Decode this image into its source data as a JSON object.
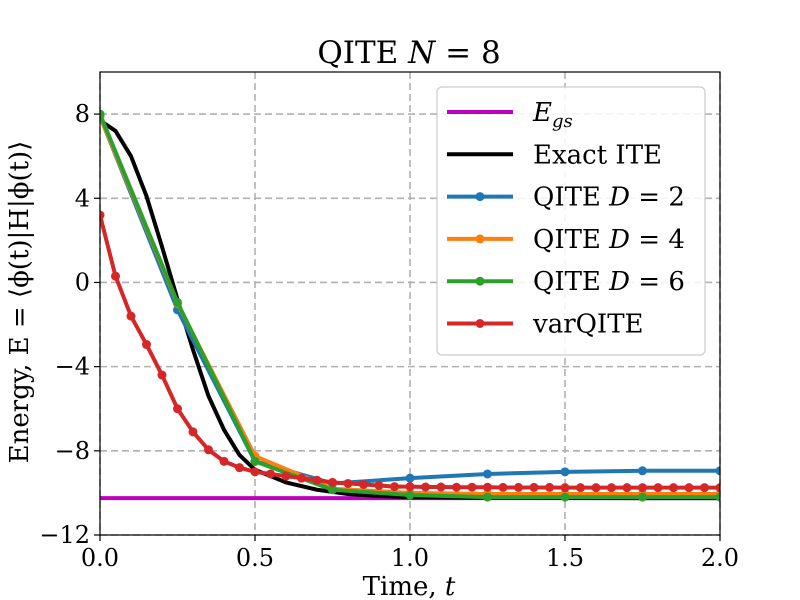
{
  "chart_data": {
    "type": "line",
    "title": "QITE N = 8",
    "xlabel": "Time, t",
    "ylabel": "Energy, E = ⟨ϕ(t)|H|ϕ(t)⟩",
    "xlim": [
      0,
      2
    ],
    "ylim": [
      -12,
      10
    ],
    "xticks": [
      0,
      0.5,
      1,
      1.5,
      2
    ],
    "xtick_labels": [
      "0.0",
      "0.5",
      "1.0",
      "1.5",
      "2.0"
    ],
    "yticks": [
      -12,
      -8,
      -4,
      0,
      4,
      8
    ],
    "ytick_labels": [
      "−12",
      "−8",
      "−4",
      "0",
      "4",
      "8"
    ],
    "grid": true,
    "legend_position": "top-right",
    "series": [
      {
        "name": "E_gs",
        "label_main": "E",
        "label_sub": "gs",
        "color": "#bf00bf",
        "markers": false,
        "x": [
          0,
          2
        ],
        "y": [
          -10.25,
          -10.25
        ]
      },
      {
        "name": "Exact ITE",
        "color": "#000000",
        "markers": false,
        "x": [
          0,
          0.05,
          0.1,
          0.15,
          0.2,
          0.25,
          0.3,
          0.35,
          0.4,
          0.45,
          0.5,
          0.6,
          0.7,
          0.8,
          0.9,
          1.0,
          1.25,
          1.5,
          1.75,
          2.0
        ],
        "y": [
          7.7,
          7.2,
          6.0,
          4.1,
          1.7,
          -0.8,
          -3.2,
          -5.4,
          -7.0,
          -8.2,
          -8.9,
          -9.5,
          -9.85,
          -10.05,
          -10.15,
          -10.2,
          -10.23,
          -10.24,
          -10.25,
          -10.25
        ]
      },
      {
        "name": "QITE D = 2",
        "label_main": "QITE",
        "label_math": "D = 2",
        "color": "#1f77b4",
        "markers": true,
        "x": [
          0,
          0.25,
          0.5,
          0.75,
          1.0,
          1.25,
          1.5,
          1.75,
          2.0
        ],
        "y": [
          7.9,
          -1.3,
          -8.5,
          -9.55,
          -9.3,
          -9.1,
          -9.0,
          -8.95,
          -8.95
        ]
      },
      {
        "name": "QITE D = 4",
        "label_main": "QITE",
        "label_math": "D = 4",
        "color": "#ff7f0e",
        "markers": true,
        "x": [
          0,
          0.25,
          0.5,
          0.75,
          1.0,
          1.25,
          1.5,
          1.75,
          2.0
        ],
        "y": [
          7.9,
          -1.0,
          -8.25,
          -9.8,
          -10.0,
          -10.05,
          -10.05,
          -10.05,
          -10.05
        ]
      },
      {
        "name": "QITE D = 6",
        "label_main": "QITE",
        "label_math": "D = 6",
        "color": "#2ca02c",
        "markers": true,
        "x": [
          0,
          0.25,
          0.5,
          0.75,
          1.0,
          1.25,
          1.5,
          1.75,
          2.0
        ],
        "y": [
          8.0,
          -0.95,
          -8.5,
          -9.85,
          -10.1,
          -10.2,
          -10.2,
          -10.2,
          -10.2
        ]
      },
      {
        "name": "varQITE",
        "color": "#d62728",
        "markers": true,
        "x": [
          0,
          0.05,
          0.1,
          0.15,
          0.2,
          0.25,
          0.3,
          0.35,
          0.4,
          0.45,
          0.5,
          0.55,
          0.6,
          0.65,
          0.7,
          0.75,
          0.8,
          0.85,
          0.9,
          0.95,
          1.0,
          1.05,
          1.1,
          1.15,
          1.2,
          1.25,
          1.3,
          1.35,
          1.4,
          1.45,
          1.5,
          1.55,
          1.6,
          1.65,
          1.7,
          1.75,
          1.8,
          1.85,
          1.9,
          1.95,
          2.0
        ],
        "y": [
          3.2,
          0.3,
          -1.6,
          -2.95,
          -4.4,
          -6.0,
          -7.1,
          -7.95,
          -8.5,
          -8.8,
          -9.0,
          -9.1,
          -9.2,
          -9.3,
          -9.4,
          -9.5,
          -9.55,
          -9.6,
          -9.65,
          -9.7,
          -9.7,
          -9.72,
          -9.72,
          -9.73,
          -9.73,
          -9.73,
          -9.74,
          -9.74,
          -9.74,
          -9.74,
          -9.75,
          -9.75,
          -9.75,
          -9.75,
          -9.75,
          -9.75,
          -9.75,
          -9.75,
          -9.75,
          -9.75,
          -9.75
        ]
      }
    ]
  }
}
